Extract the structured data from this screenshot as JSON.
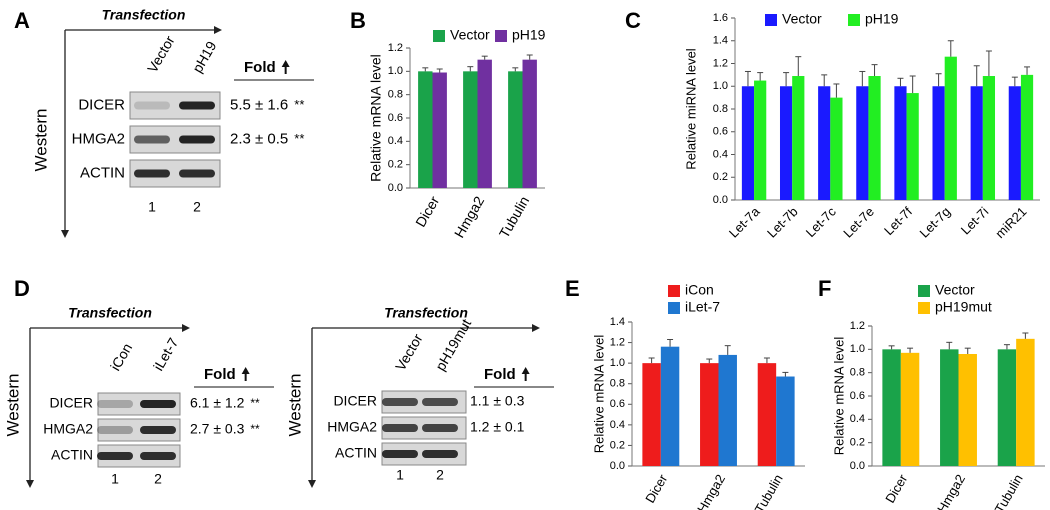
{
  "chart_data": [
    {
      "type": "bar",
      "panel": "B",
      "y_label": "Relative mRNA level",
      "categories": [
        "Dicer",
        "Hmga2",
        "Tubulin"
      ],
      "series": [
        {
          "name": "Vector",
          "color": "#1aa34a",
          "values": [
            1.0,
            1.0,
            1.0
          ],
          "errors": [
            0.03,
            0.04,
            0.03
          ]
        },
        {
          "name": "pH19",
          "color": "#7030a0",
          "values": [
            0.99,
            1.1,
            1.1
          ],
          "errors": [
            0.03,
            0.03,
            0.04
          ]
        }
      ],
      "ylim": [
        0,
        1.2
      ],
      "yticks": [
        {
          "value": 0,
          "label": "0.0"
        },
        0.2,
        0.4,
        0.6,
        0.8,
        {
          "value": 1,
          "label": "1.0"
        },
        1.2
      ]
    },
    {
      "type": "bar",
      "panel": "C",
      "y_label": "Relative miRNA level",
      "categories": [
        "Let-7a",
        "Let-7b",
        "Let-7c",
        "Let-7e",
        "Let-7f",
        "Let-7g",
        "Let-7i",
        "miR21"
      ],
      "series": [
        {
          "name": "Vector",
          "color": "#1a1aff",
          "values": [
            1.0,
            1.0,
            1.0,
            1.0,
            1.0,
            1.0,
            1.0,
            1.0
          ],
          "errors": [
            0.13,
            0.12,
            0.1,
            0.13,
            0.07,
            0.11,
            0.18,
            0.08
          ]
        },
        {
          "name": "pH19",
          "color": "#22ee22",
          "values": [
            1.05,
            1.09,
            0.9,
            1.09,
            0.94,
            1.26,
            1.09,
            1.1
          ],
          "errors": [
            0.07,
            0.17,
            0.12,
            0.1,
            0.15,
            0.14,
            0.22,
            0.07
          ]
        }
      ],
      "ylim": [
        0,
        1.6
      ],
      "yticks": [
        {
          "value": 0,
          "label": "0.0"
        },
        0.2,
        0.4,
        0.6,
        0.8,
        {
          "value": 1,
          "label": "1.0"
        },
        1.2,
        1.4,
        1.6
      ]
    },
    {
      "type": "bar",
      "panel": "E",
      "y_label": "Relative mRNA level",
      "categories": [
        "Dicer",
        "Hmga2",
        "Tubulin"
      ],
      "series": [
        {
          "name": "iCon",
          "color": "#ee1c1c",
          "values": [
            1.0,
            1.0,
            1.0
          ],
          "errors": [
            0.05,
            0.04,
            0.05
          ]
        },
        {
          "name": "iLet-7",
          "color": "#1f77d0",
          "values": [
            1.16,
            1.08,
            0.87
          ],
          "errors": [
            0.07,
            0.09,
            0.04
          ]
        }
      ],
      "ylim": [
        0,
        1.4
      ],
      "yticks": [
        {
          "value": 0,
          "label": "0.0"
        },
        0.2,
        0.4,
        0.6,
        0.8,
        {
          "value": 1,
          "label": "1.0"
        },
        1.2,
        1.4
      ]
    },
    {
      "type": "bar",
      "panel": "F",
      "y_label": "Relative mRNA level",
      "categories": [
        "Dicer",
        "Hmga2",
        "Tubulin"
      ],
      "series": [
        {
          "name": "Vector",
          "color": "#1aa34a",
          "values": [
            1.0,
            1.0,
            1.0
          ],
          "errors": [
            0.03,
            0.06,
            0.04
          ]
        },
        {
          "name": "pH19mut",
          "color": "#ffc000",
          "values": [
            0.97,
            0.96,
            1.09
          ],
          "errors": [
            0.04,
            0.05,
            0.05
          ]
        }
      ],
      "ylim": [
        0,
        1.2
      ],
      "yticks": [
        {
          "value": 0,
          "label": "0.0"
        },
        0.2,
        0.4,
        0.6,
        0.8,
        {
          "value": 1,
          "label": "1.0"
        },
        1.2
      ]
    }
  ],
  "blots": [
    {
      "panel": "A",
      "heading": "Transfection",
      "side_label": "Western",
      "lanes": [
        "Vector",
        "pH19"
      ],
      "lane_numbers": [
        "1",
        "2"
      ],
      "fold_header": "Fold",
      "rows": [
        {
          "label": "DICER",
          "fold": "5.5 ± 1.6",
          "significance": "**"
        },
        {
          "label": "HMGA2",
          "fold": "2.3 ± 0.5",
          "significance": "**"
        },
        {
          "label": "ACTIN"
        }
      ]
    },
    {
      "panel": "D",
      "heading": "Transfection",
      "side_label": "Western",
      "lanes": [
        "iCon",
        "iLet-7"
      ],
      "lane_numbers": [
        "1",
        "2"
      ],
      "fold_header": "Fold",
      "rows": [
        {
          "label": "DICER",
          "fold": "6.1 ± 1.2",
          "significance": "**"
        },
        {
          "label": "HMGA2",
          "fold": "2.7 ± 0.3",
          "significance": "**"
        },
        {
          "label": "ACTIN"
        }
      ]
    },
    {
      "heading": "Transfection",
      "side_label": "Western",
      "lanes": [
        "Vector",
        "pH19mut"
      ],
      "lane_numbers": [
        "1",
        "2"
      ],
      "fold_header": "Fold",
      "rows": [
        {
          "label": "DICER",
          "fold": "1.1 ± 0.3"
        },
        {
          "label": "HMGA2",
          "fold": "1.2 ± 0.1"
        },
        {
          "label": "ACTIN"
        }
      ]
    }
  ]
}
